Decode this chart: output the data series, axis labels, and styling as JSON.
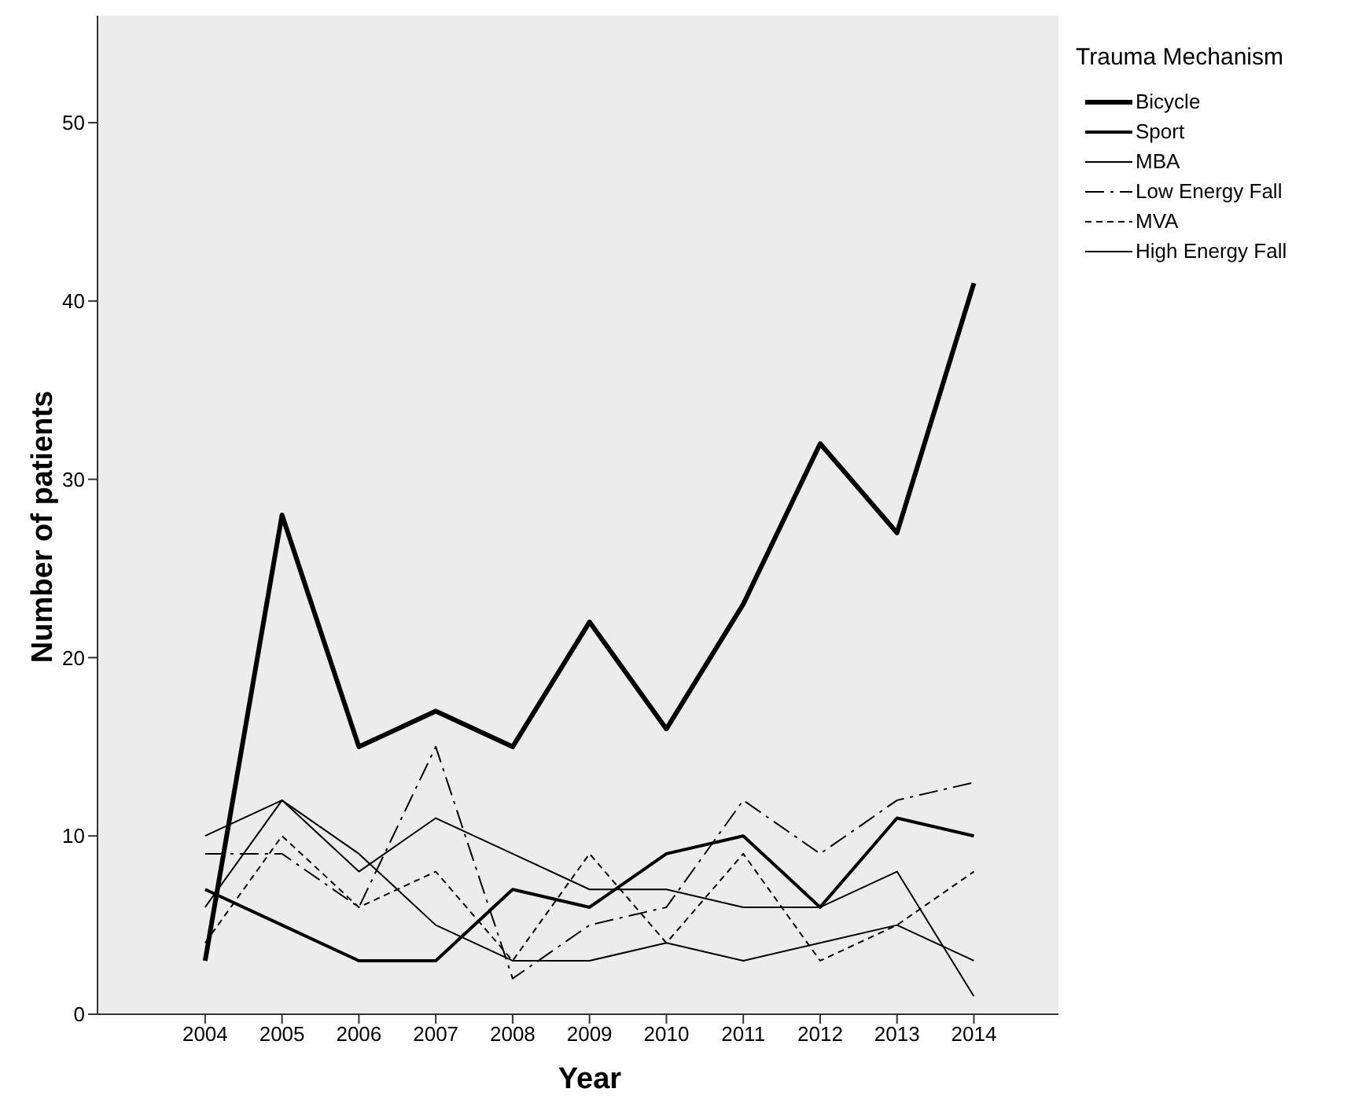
{
  "chart_data": {
    "type": "line",
    "xlabel": "Year",
    "ylabel": "Number of patients",
    "legend_title": "Trauma Mechanism",
    "legend": "right",
    "grid": false,
    "marker": "none",
    "x": [
      2004,
      2005,
      2006,
      2007,
      2008,
      2009,
      2010,
      2011,
      2012,
      2013,
      2014
    ],
    "xlim": [
      2002.6,
      2015.1
    ],
    "xticks": [
      2004,
      2005,
      2006,
      2007,
      2008,
      2009,
      2010,
      2011,
      2012,
      2013,
      2014
    ],
    "ylim": [
      0,
      56
    ],
    "yticks": [
      0,
      10,
      20,
      30,
      40,
      50
    ],
    "series": [
      {
        "name": "Bicycle",
        "color": "#000000",
        "line_style": "solid",
        "values": [
          3,
          28,
          15,
          17,
          15,
          22,
          16,
          23,
          32,
          27,
          41
        ]
      },
      {
        "name": "Sport",
        "color": "#000000",
        "line_style": "solid",
        "values": [
          7,
          5,
          3,
          3,
          7,
          6,
          9,
          10,
          6,
          11,
          10
        ]
      },
      {
        "name": "MBA",
        "color": "#000000",
        "line_style": "solid",
        "values": [
          10,
          12,
          8,
          11,
          9,
          7,
          7,
          6,
          6,
          8,
          1
        ]
      },
      {
        "name": "Low Energy Fall",
        "color": "#000000",
        "line_style": "dashdot",
        "values": [
          9,
          9,
          6,
          15,
          2,
          5,
          6,
          12,
          9,
          12,
          13
        ]
      },
      {
        "name": "MVA",
        "color": "#000000",
        "line_style": "dashed",
        "values": [
          4,
          10,
          6,
          8,
          3,
          9,
          4,
          9,
          3,
          5,
          8
        ]
      },
      {
        "name": "High Energy Fall",
        "color": "#000000",
        "line_style": "solid",
        "values": [
          6,
          12,
          9,
          5,
          3,
          3,
          4,
          3,
          4,
          5,
          3
        ]
      }
    ]
  }
}
